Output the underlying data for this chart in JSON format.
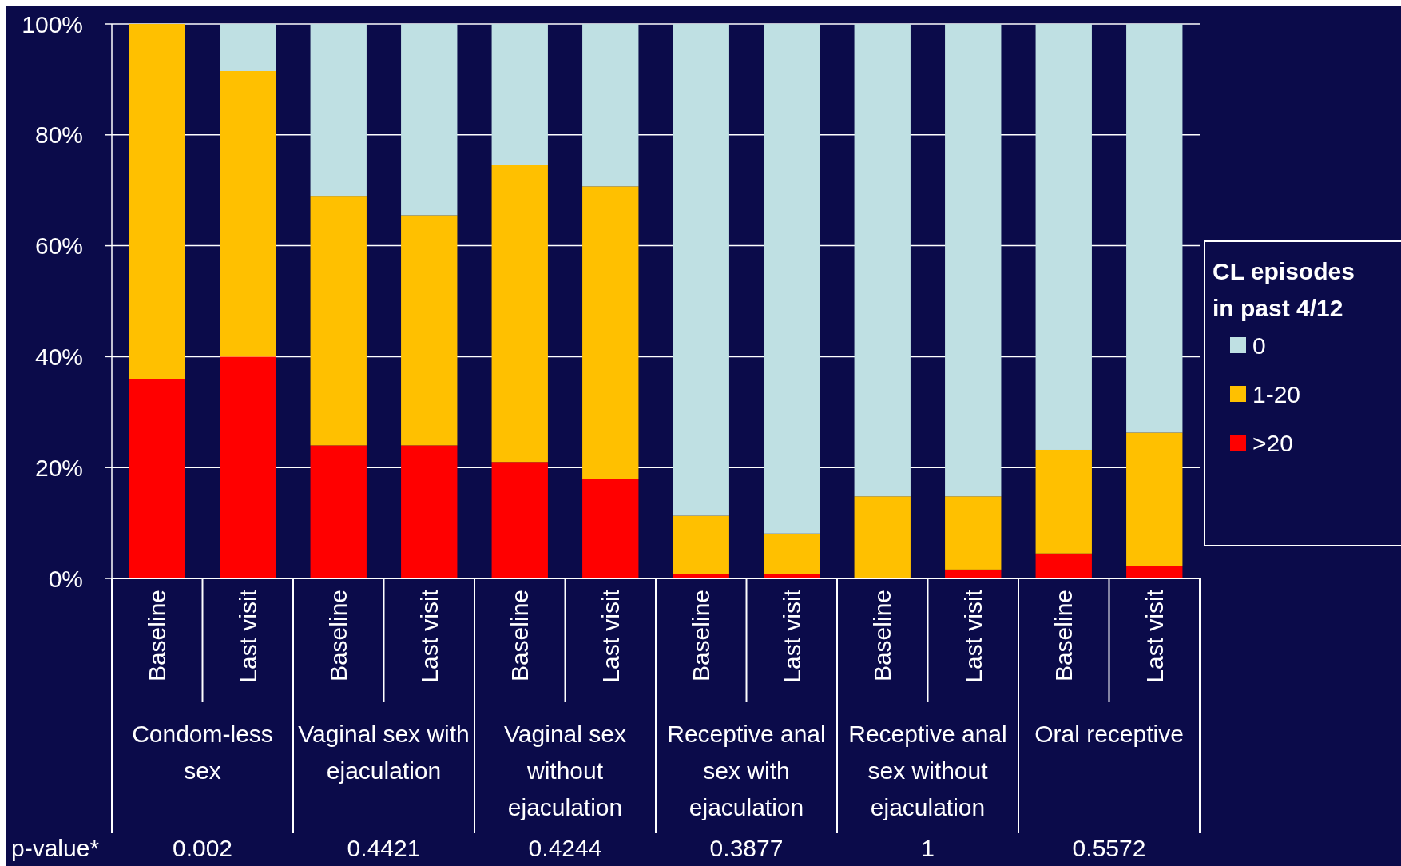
{
  "chart_data": {
    "type": "bar",
    "stacked": true,
    "categories": [
      "Baseline",
      "Last visit",
      "Baseline",
      "Last visit",
      "Baseline",
      "Last visit",
      "Baseline",
      "Last visit",
      "Baseline",
      "Last visit",
      "Baseline",
      "Last visit"
    ],
    "series": [
      {
        "name": ">20",
        "color": "#ff0000",
        "values": [
          36,
          40,
          24,
          24,
          21,
          18,
          0.8,
          0.8,
          0,
          1.6,
          4.5,
          2.3
        ]
      },
      {
        "name": "1-20",
        "color": "#ffc000",
        "values": [
          64,
          51.5,
          45,
          41.5,
          53.6,
          52.7,
          10.5,
          7.3,
          14.8,
          13.2,
          18.7,
          24
        ]
      },
      {
        "name": "0",
        "color": "#bfe0e3",
        "values": [
          0,
          8.5,
          31,
          34.5,
          25.4,
          29.3,
          88.7,
          91.9,
          85.2,
          85.2,
          76.8,
          73.7
        ]
      }
    ],
    "ylim": [
      0,
      100
    ],
    "yticks": [
      {
        "value": 0,
        "label": "0%"
      },
      {
        "value": 20,
        "label": "20%"
      },
      {
        "value": 40,
        "label": "40%"
      },
      {
        "value": 60,
        "label": "60%"
      },
      {
        "value": 80,
        "label": "80%"
      },
      {
        "value": 100,
        "label": "100%"
      }
    ],
    "grid": "y",
    "legend": "right",
    "legend_title": "CL episodes in past 4/12",
    "annotations": [
      "Condom-less sex",
      "Vaginal sex with ejaculation",
      "Vaginal sex without ejaculation",
      "Receptive anal sex with ejaculation",
      "Receptive anal sex without ejaculation",
      "Oral receptive",
      "p-value*",
      "0.002",
      "0.4421",
      "0.4244",
      "0.3877",
      "1",
      "0.5572"
    ]
  }
}
